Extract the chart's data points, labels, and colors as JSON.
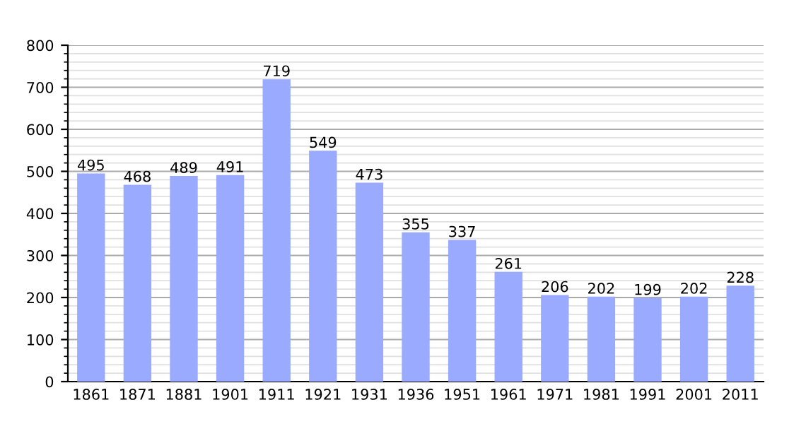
{
  "chart_data": {
    "type": "bar",
    "categories": [
      "1861",
      "1871",
      "1881",
      "1901",
      "1911",
      "1921",
      "1931",
      "1936",
      "1951",
      "1961",
      "1971",
      "1981",
      "1991",
      "2001",
      "2011"
    ],
    "values": [
      495,
      468,
      489,
      491,
      719,
      549,
      473,
      355,
      337,
      261,
      206,
      202,
      199,
      202,
      228
    ],
    "color": "#99aaff",
    "ylim": [
      0,
      800
    ],
    "yticks": [
      0,
      100,
      200,
      300,
      400,
      500,
      600,
      700,
      800
    ],
    "grid": "y",
    "data_labels": true
  }
}
